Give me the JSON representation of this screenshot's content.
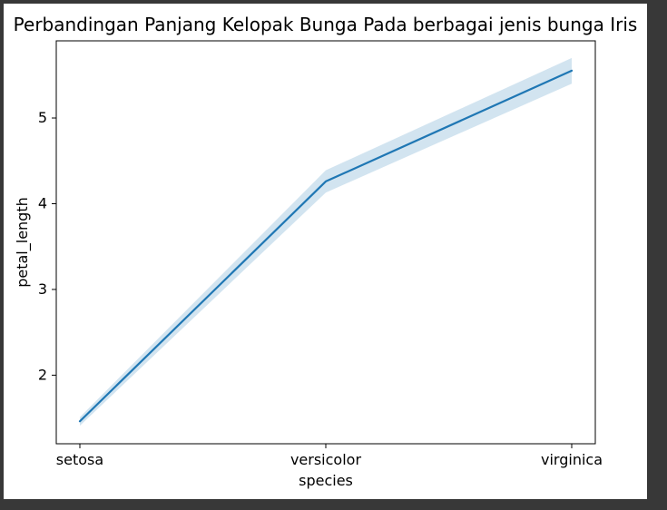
{
  "chart_data": {
    "type": "line",
    "title": "Perbandingan Panjang Kelopak Bunga Pada berbagai jenis bunga Iris",
    "xlabel": "species",
    "ylabel": "petal_length",
    "categories": [
      "setosa",
      "versicolor",
      "virginica"
    ],
    "series": [
      {
        "values": [
          1.462,
          4.26,
          5.552
        ],
        "ci_lower": [
          1.41,
          4.13,
          5.4
        ],
        "ci_upper": [
          1.51,
          4.39,
          5.7
        ],
        "color": "#1f77b4"
      }
    ],
    "ylim": [
      1.2,
      5.9
    ],
    "yticks": [
      2,
      3,
      4,
      5
    ],
    "grid": false,
    "legend": "none"
  }
}
